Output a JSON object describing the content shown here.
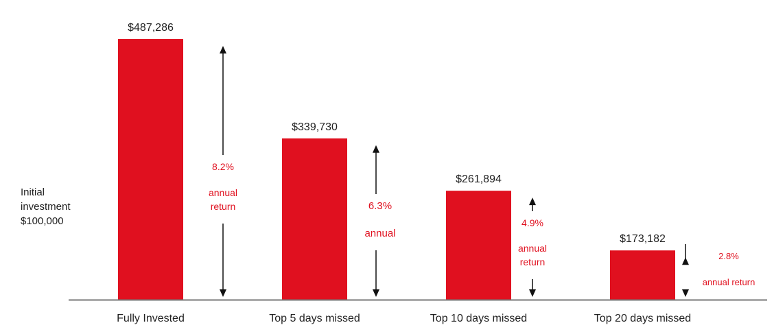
{
  "initial": {
    "line1": "Initial",
    "line2": "investment",
    "line3": "$100,000"
  },
  "colors": {
    "bar": "#e0101f",
    "return_text": "#e0101f",
    "text": "#222222",
    "arrow": "#111111",
    "axis": "#777777"
  },
  "chart_data": {
    "type": "bar",
    "categories": [
      "Fully Invested",
      "Top 5 days missed",
      "Top 10 days missed",
      "Top 20 days missed"
    ],
    "values": [
      487286,
      339730,
      261894,
      173182
    ],
    "value_labels": [
      "$487,286",
      "$339,730",
      "$261,894",
      "$173,182"
    ],
    "baseline_value": 100000,
    "ylim": [
      100000,
      487286
    ],
    "returns": [
      {
        "pct": "8.2%",
        "lines": [
          "annual",
          "return"
        ]
      },
      {
        "pct": "6.3%",
        "lines": [
          "annual"
        ]
      },
      {
        "pct": "4.9%",
        "lines": [
          "annual",
          "return"
        ]
      },
      {
        "pct": "2.8%",
        "lines": [
          "annual return"
        ]
      }
    ],
    "grid": false,
    "xlabel": "",
    "ylabel": "",
    "title": ""
  }
}
